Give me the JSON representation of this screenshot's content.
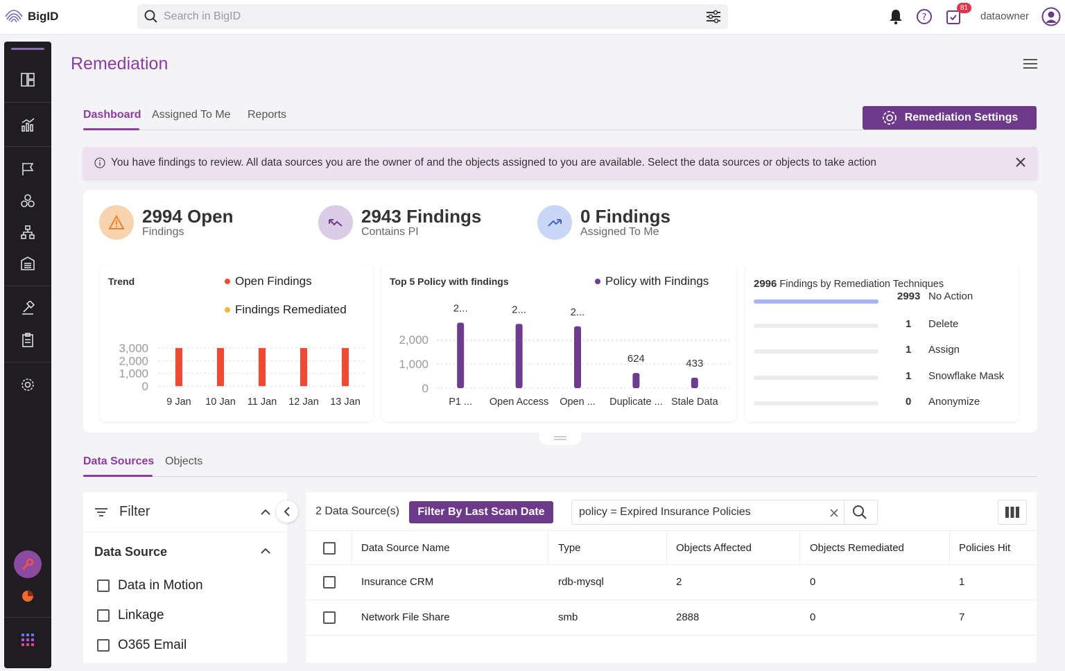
{
  "app": {
    "logo_text": "BigID"
  },
  "search": {
    "placeholder": "Search in BigID"
  },
  "header": {
    "notifications_badge": "81",
    "username": "dataowner"
  },
  "page": {
    "title": "Remediation"
  },
  "tabs": [
    {
      "label": "Dashboard",
      "active": true
    },
    {
      "label": "Assigned To Me",
      "active": false
    },
    {
      "label": "Reports",
      "active": false
    }
  ],
  "settings_button": {
    "label": "Remediation Settings"
  },
  "banner": {
    "text": "You have findings to review. All data sources you are the owner of and the objects assigned to you are available. Select the data sources or objects to take action"
  },
  "stats": [
    {
      "number": "2994 Open",
      "sub": "Findings",
      "color": "#f8d3b0"
    },
    {
      "number": "2943 Findings",
      "sub": "Contains PI",
      "color": "#dccbe4"
    },
    {
      "number": "0 Findings",
      "sub": "Assigned To Me",
      "color": "#c9d6f6"
    }
  ],
  "chart_data": [
    {
      "type": "bar",
      "title": "Trend",
      "categories": [
        "9 Jan",
        "10 Jan",
        "11 Jan",
        "12 Jan",
        "13 Jan"
      ],
      "series": [
        {
          "name": "Open Findings",
          "values": [
            2994,
            2994,
            2994,
            2994,
            2994
          ],
          "color": "#f04b32"
        },
        {
          "name": "Findings Remediated",
          "values": [
            0,
            0,
            0,
            0,
            0
          ],
          "color": "#f5b63c"
        }
      ],
      "yticks": [
        "3,000",
        "2,000",
        "1,000",
        "0"
      ],
      "ylim": [
        0,
        3000
      ]
    },
    {
      "type": "bar",
      "title": "Top 5 Policy with findings",
      "categories": [
        "P1 ...",
        "Open Access",
        "Open ...",
        "Duplicate ...",
        "Stale Data"
      ],
      "series": [
        {
          "name": "Policy with Findings",
          "values": [
            2700,
            2650,
            2550,
            624,
            433
          ],
          "color": "#6e3c8e"
        }
      ],
      "data_labels": [
        "2...",
        "2...",
        "2...",
        "624",
        "433"
      ],
      "yticks": [
        "2,000",
        "1,000",
        "0"
      ],
      "ylim": [
        0,
        3000
      ]
    }
  ],
  "techniques": {
    "total": "2996",
    "title": "Findings by Remediation Techniques",
    "items": [
      {
        "count": "2993",
        "label": "No Action",
        "value": 2993
      },
      {
        "count": "1",
        "label": "Delete",
        "value": 1
      },
      {
        "count": "1",
        "label": "Assign",
        "value": 1
      },
      {
        "count": "1",
        "label": "Snowflake Mask",
        "value": 1
      },
      {
        "count": "0",
        "label": "Anonymize",
        "value": 0
      }
    ]
  },
  "tabs2": [
    {
      "label": "Data Sources",
      "active": true
    },
    {
      "label": "Objects",
      "active": false
    }
  ],
  "filter": {
    "title": "Filter",
    "section_title": "Data Source",
    "options": [
      "Data in Motion",
      "Linkage",
      "O365 Email"
    ]
  },
  "table": {
    "count_label": "2 Data Source(s)",
    "scan_button": "Filter By Last Scan Date",
    "query": "policy = Expired Insurance Policies",
    "columns": [
      "Data Source Name",
      "Type",
      "Objects Affected",
      "Objects Remediated",
      "Policies Hit"
    ],
    "rows": [
      [
        "Insurance CRM",
        "rdb-mysql",
        "2",
        "0",
        "1"
      ],
      [
        "Network File Share",
        "smb",
        "2888",
        "0",
        "7"
      ]
    ]
  }
}
